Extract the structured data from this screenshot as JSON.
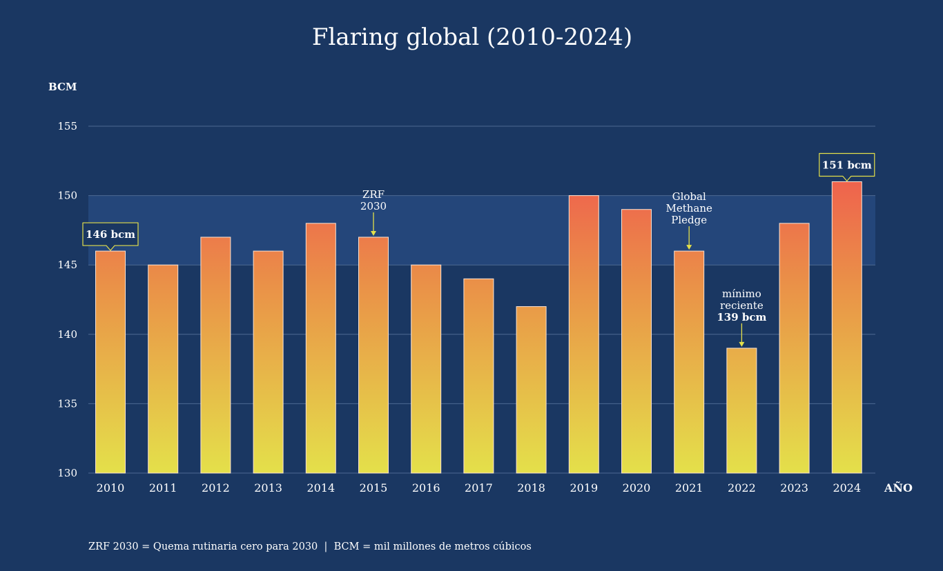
{
  "chart_data": {
    "type": "bar",
    "title": "Flaring global (2010-2024)",
    "ylabel": "BCM",
    "xlabel": "AÑO",
    "ylim": [
      130,
      155
    ],
    "yticks": [
      130,
      135,
      140,
      145,
      150,
      155
    ],
    "grid": true,
    "categories": [
      "2010",
      "2011",
      "2012",
      "2013",
      "2014",
      "2015",
      "2016",
      "2017",
      "2018",
      "2019",
      "2020",
      "2021",
      "2022",
      "2023",
      "2024"
    ],
    "values": [
      146,
      145,
      147,
      146,
      148,
      147,
      145,
      144,
      142,
      150,
      149,
      146,
      139,
      148,
      151
    ],
    "highlight_band": [
      145,
      150
    ],
    "colors": {
      "background": "#1a3762",
      "band": "#24467a",
      "bar_top": "#ee5750",
      "bar_bottom": "#e4e04a",
      "accent": "#e4e04a",
      "text": "#ffffff",
      "grid": "#4e6a92"
    },
    "callouts": [
      {
        "category": "2010",
        "text": "146 bcm"
      },
      {
        "category": "2024",
        "text": "151 bcm"
      }
    ],
    "annotations": [
      {
        "category": "2015",
        "lines": [
          "ZRF",
          "2030"
        ]
      },
      {
        "category": "2021",
        "lines": [
          "Global",
          "Methane",
          "Pledge"
        ]
      },
      {
        "category": "2022",
        "lines": [
          "mínimo",
          "reciente",
          "139 bcm"
        ]
      }
    ],
    "footnote": "ZRF 2030 = Quema rutinaria cero para 2030  |  BCM = mil millones de metros cúbicos"
  }
}
